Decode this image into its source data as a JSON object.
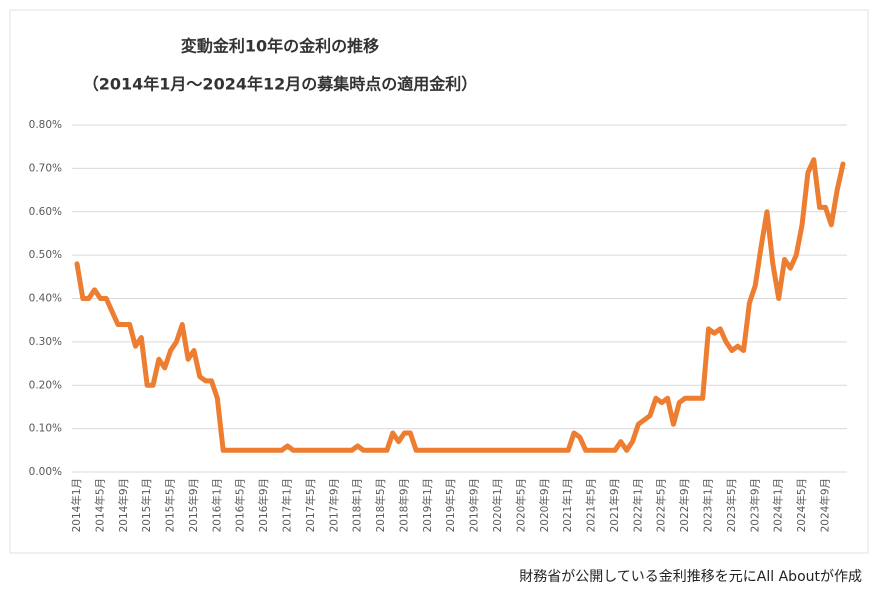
{
  "chart_data": {
    "type": "line",
    "title": "変動金利10年の金利の推移",
    "subtitle": "（2014年1月～2024年12月の募集時点の適用金利）",
    "source": "財務省が公開している金利推移を元にAll Aboutが作成",
    "categories": [
      "2014年1月",
      null,
      null,
      null,
      "2014年5月",
      null,
      null,
      null,
      "2014年9月",
      null,
      null,
      null,
      "2015年1月",
      null,
      null,
      null,
      "2015年5月",
      null,
      null,
      null,
      "2015年9月",
      null,
      null,
      null,
      "2016年1月",
      null,
      null,
      null,
      "2016年5月",
      null,
      null,
      null,
      "2016年9月",
      null,
      null,
      null,
      "2017年1月",
      null,
      null,
      null,
      "2017年5月",
      null,
      null,
      null,
      "2017年9月",
      null,
      null,
      null,
      "2018年1月",
      null,
      null,
      null,
      "2018年5月",
      null,
      null,
      null,
      "2018年9月",
      null,
      null,
      null,
      "2019年1月",
      null,
      null,
      null,
      "2019年5月",
      null,
      null,
      null,
      "2019年9月",
      null,
      null,
      null,
      "2020年1月",
      null,
      null,
      null,
      "2020年5月",
      null,
      null,
      null,
      "2020年9月",
      null,
      null,
      null,
      "2021年1月",
      null,
      null,
      null,
      "2021年5月",
      null,
      null,
      null,
      "2021年9月",
      null,
      null,
      null,
      "2022年1月",
      null,
      null,
      null,
      "2022年5月",
      null,
      null,
      null,
      "2022年9月",
      null,
      null,
      null,
      "2023年1月",
      null,
      null,
      null,
      "2023年5月",
      null,
      null,
      null,
      "2023年9月",
      null,
      null,
      null,
      "2024年1月",
      null,
      null,
      null,
      "2024年5月",
      null,
      null,
      null,
      "2024年9月",
      null,
      null,
      null
    ],
    "series": [
      {
        "name": "変動金利",
        "color": "#ed7d31",
        "values": [
          0.48,
          0.4,
          0.4,
          0.42,
          0.4,
          0.4,
          0.37,
          0.34,
          0.34,
          0.34,
          0.29,
          0.31,
          0.2,
          0.2,
          0.26,
          0.24,
          0.28,
          0.3,
          0.34,
          0.26,
          0.28,
          0.22,
          0.21,
          0.21,
          0.17,
          0.05,
          0.05,
          0.05,
          0.05,
          0.05,
          0.05,
          0.05,
          0.05,
          0.05,
          0.05,
          0.05,
          0.06,
          0.05,
          0.05,
          0.05,
          0.05,
          0.05,
          0.05,
          0.05,
          0.05,
          0.05,
          0.05,
          0.05,
          0.06,
          0.05,
          0.05,
          0.05,
          0.05,
          0.05,
          0.09,
          0.07,
          0.09,
          0.09,
          0.05,
          0.05,
          0.05,
          0.05,
          0.05,
          0.05,
          0.05,
          0.05,
          0.05,
          0.05,
          0.05,
          0.05,
          0.05,
          0.05,
          0.05,
          0.05,
          0.05,
          0.05,
          0.05,
          0.05,
          0.05,
          0.05,
          0.05,
          0.05,
          0.05,
          0.05,
          0.05,
          0.09,
          0.08,
          0.05,
          0.05,
          0.05,
          0.05,
          0.05,
          0.05,
          0.07,
          0.05,
          0.07,
          0.11,
          0.12,
          0.13,
          0.17,
          0.16,
          0.17,
          0.11,
          0.16,
          0.17,
          0.17,
          0.17,
          0.17,
          0.33,
          0.32,
          0.33,
          0.3,
          0.28,
          0.29,
          0.28,
          0.39,
          0.43,
          0.52,
          0.6,
          0.48,
          0.4,
          0.49,
          0.47,
          0.5,
          0.57,
          0.69,
          0.72,
          0.61,
          0.61,
          0.57,
          0.65,
          0.71
        ]
      }
    ],
    "ylim": [
      0,
      0.8
    ],
    "yticks": [
      {
        "value": 0,
        "label": "0.00%"
      },
      {
        "value": 0.1,
        "label": "0.10%"
      },
      {
        "value": 0.2,
        "label": "0.20%"
      },
      {
        "value": 0.3,
        "label": "0.30%"
      },
      {
        "value": 0.4,
        "label": "0.40%"
      },
      {
        "value": 0.5,
        "label": "0.50%"
      },
      {
        "value": 0.6,
        "label": "0.60%"
      },
      {
        "value": 0.7,
        "label": "0.70%"
      },
      {
        "value": 0.8,
        "label": "0.80%"
      }
    ],
    "grid": true
  }
}
